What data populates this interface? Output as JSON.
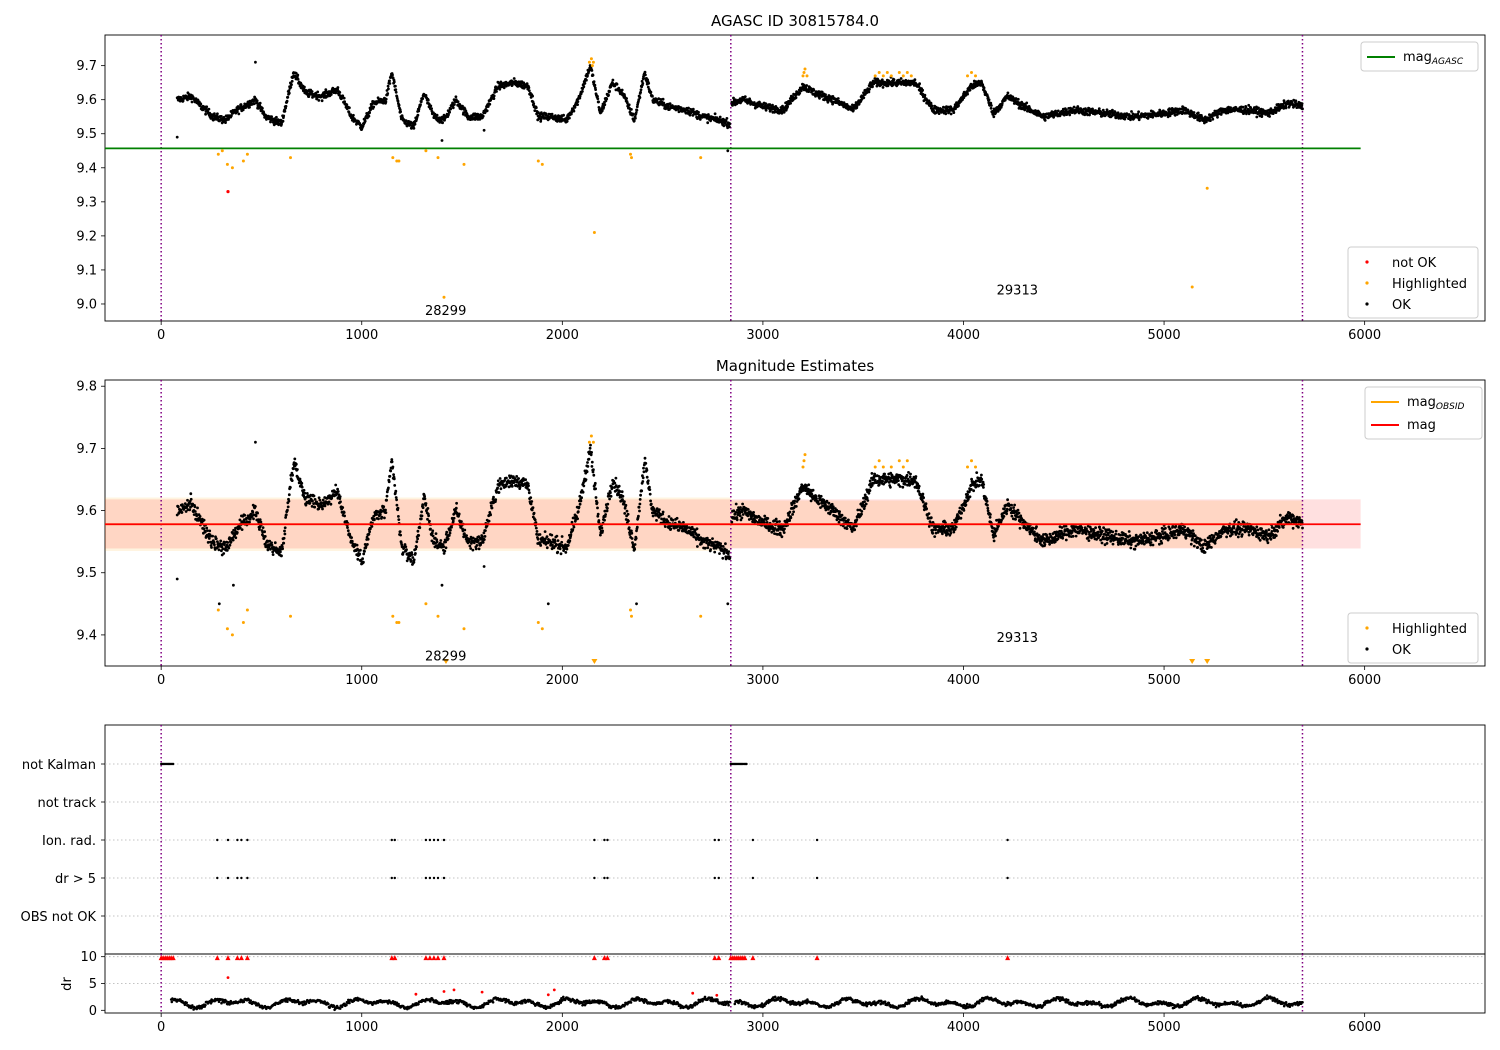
{
  "figure": {
    "title_top": "AGASC ID 30815784.0",
    "title_middle": "Magnitude Estimates"
  },
  "colors": {
    "ok": "#000000",
    "highlighted": "#ffa500",
    "not_ok": "#ff0000",
    "mag_agasc": "#008000",
    "mag_obsid": "#ffa500",
    "mag": "#ff0000",
    "band_obsid": "#ffa500",
    "band_mag": "#ff0000",
    "obs_boundary": "#800080"
  },
  "chart_data": [
    {
      "id": "top",
      "type": "scatter",
      "title": "AGASC ID 30815784.0",
      "xlim": [
        -280,
        6600
      ],
      "ylim": [
        8.95,
        9.79
      ],
      "xticks": [
        0,
        1000,
        2000,
        3000,
        4000,
        5000,
        6000
      ],
      "yticks": [
        9.0,
        9.1,
        9.2,
        9.3,
        9.4,
        9.5,
        9.6,
        9.7
      ],
      "obs_boundaries": [
        0,
        2840,
        5690
      ],
      "obsids": [
        {
          "label": "28299",
          "x": 1420,
          "y": 8.98
        },
        {
          "label": "29313",
          "x": 4270,
          "y": 9.04
        }
      ],
      "hlines": [
        {
          "name": "mag_AGASC",
          "y": 9.457,
          "x": [
            -280,
            5980
          ],
          "color": "#008000"
        }
      ],
      "legend_upper": [
        {
          "label": "mag",
          "sub": "AGASC",
          "color": "#008000"
        }
      ],
      "legend_lower": [
        {
          "label": "not OK",
          "color": "#ff0000"
        },
        {
          "label": "Highlighted",
          "color": "#ffa500"
        },
        {
          "label": "OK",
          "color": "#000000"
        }
      ],
      "highlighted_points": [
        [
          285,
          9.44
        ],
        [
          305,
          9.45
        ],
        [
          330,
          9.41
        ],
        [
          355,
          9.4
        ],
        [
          410,
          9.42
        ],
        [
          430,
          9.44
        ],
        [
          645,
          9.43
        ],
        [
          1155,
          9.43
        ],
        [
          1175,
          9.42
        ],
        [
          1185,
          9.42
        ],
        [
          1320,
          9.45
        ],
        [
          1380,
          9.43
        ],
        [
          1510,
          9.41
        ],
        [
          1880,
          9.42
        ],
        [
          1900,
          9.41
        ],
        [
          2160,
          9.21
        ],
        [
          2340,
          9.44
        ],
        [
          2345,
          9.43
        ],
        [
          2690,
          9.43
        ],
        [
          5140,
          9.05
        ],
        [
          5215,
          9.34
        ],
        [
          2135,
          9.71
        ],
        [
          2145,
          9.72
        ],
        [
          2155,
          9.71
        ],
        [
          2150,
          9.7
        ],
        [
          3200,
          9.67
        ],
        [
          3205,
          9.68
        ],
        [
          3210,
          9.69
        ],
        [
          3220,
          9.67
        ],
        [
          3560,
          9.67
        ],
        [
          3580,
          9.68
        ],
        [
          3600,
          9.67
        ],
        [
          3620,
          9.68
        ],
        [
          3640,
          9.67
        ],
        [
          3680,
          9.68
        ],
        [
          3700,
          9.67
        ],
        [
          3720,
          9.68
        ],
        [
          3740,
          9.67
        ],
        [
          4020,
          9.67
        ],
        [
          4040,
          9.68
        ],
        [
          4060,
          9.67
        ],
        [
          1410,
          9.02
        ]
      ],
      "not_ok_points": [
        [
          333,
          9.33
        ]
      ],
      "segments": [
        {
          "x": [
            80,
            2835
          ],
          "n": 1500,
          "y": [
            [
              80,
              9.6
            ],
            [
              150,
              9.61
            ],
            [
              200,
              9.58
            ],
            [
              260,
              9.55
            ],
            [
              320,
              9.54
            ],
            [
              380,
              9.57
            ],
            [
              470,
              9.6
            ],
            [
              520,
              9.55
            ],
            [
              600,
              9.53
            ],
            [
              660,
              9.68
            ],
            [
              720,
              9.62
            ],
            [
              800,
              9.61
            ],
            [
              880,
              9.63
            ],
            [
              950,
              9.55
            ],
            [
              1000,
              9.52
            ],
            [
              1060,
              9.59
            ],
            [
              1120,
              9.6
            ],
            [
              1150,
              9.68
            ],
            [
              1200,
              9.54
            ],
            [
              1260,
              9.52
            ],
            [
              1310,
              9.62
            ],
            [
              1360,
              9.55
            ],
            [
              1410,
              9.54
            ],
            [
              1470,
              9.6
            ],
            [
              1530,
              9.55
            ],
            [
              1600,
              9.55
            ],
            [
              1680,
              9.64
            ],
            [
              1760,
              9.65
            ],
            [
              1830,
              9.64
            ],
            [
              1880,
              9.55
            ],
            [
              1950,
              9.55
            ],
            [
              2020,
              9.54
            ],
            [
              2080,
              9.6
            ],
            [
              2140,
              9.7
            ],
            [
              2190,
              9.56
            ],
            [
              2250,
              9.65
            ],
            [
              2300,
              9.62
            ],
            [
              2360,
              9.54
            ],
            [
              2410,
              9.68
            ],
            [
              2450,
              9.6
            ],
            [
              2530,
              9.58
            ],
            [
              2620,
              9.57
            ],
            [
              2700,
              9.55
            ],
            [
              2780,
              9.54
            ],
            [
              2835,
              9.53
            ]
          ]
        },
        {
          "x": [
            2845,
            5690
          ],
          "n": 1700,
          "y": [
            [
              2845,
              9.59
            ],
            [
              2900,
              9.6
            ],
            [
              3000,
              9.58
            ],
            [
              3100,
              9.57
            ],
            [
              3200,
              9.64
            ],
            [
              3260,
              9.62
            ],
            [
              3350,
              9.6
            ],
            [
              3450,
              9.57
            ],
            [
              3550,
              9.65
            ],
            [
              3650,
              9.65
            ],
            [
              3760,
              9.65
            ],
            [
              3850,
              9.57
            ],
            [
              3950,
              9.57
            ],
            [
              4040,
              9.64
            ],
            [
              4090,
              9.65
            ],
            [
              4150,
              9.56
            ],
            [
              4220,
              9.61
            ],
            [
              4300,
              9.58
            ],
            [
              4400,
              9.55
            ],
            [
              4550,
              9.57
            ],
            [
              4700,
              9.56
            ],
            [
              4850,
              9.55
            ],
            [
              5000,
              9.56
            ],
            [
              5100,
              9.57
            ],
            [
              5200,
              9.54
            ],
            [
              5300,
              9.57
            ],
            [
              5420,
              9.57
            ],
            [
              5520,
              9.56
            ],
            [
              5620,
              9.59
            ],
            [
              5690,
              9.58
            ]
          ]
        }
      ],
      "outliers_ok": [
        [
          80,
          9.49
        ],
        [
          470,
          9.71
        ],
        [
          1400,
          9.48
        ],
        [
          2825,
          9.45
        ],
        [
          1610,
          9.51
        ]
      ]
    },
    {
      "id": "middle",
      "type": "scatter",
      "title": "Magnitude Estimates",
      "xlim": [
        -280,
        6600
      ],
      "ylim": [
        9.35,
        9.81
      ],
      "xticks": [
        0,
        1000,
        2000,
        3000,
        4000,
        5000,
        6000
      ],
      "yticks": [
        9.4,
        9.5,
        9.6,
        9.7,
        9.8
      ],
      "obs_boundaries": [
        0,
        2840,
        5690
      ],
      "obsids": [
        {
          "label": "28299",
          "x": 1420,
          "y": 9.365
        },
        {
          "label": "29313",
          "x": 4270,
          "y": 9.395
        }
      ],
      "bands": [
        {
          "x": [
            -280,
            2840
          ],
          "y": [
            9.535,
            9.621
          ],
          "color": "#ffa500"
        },
        {
          "x": [
            2840,
            5690
          ],
          "y": [
            9.54,
            9.616
          ],
          "color": "#ffa500"
        },
        {
          "x": [
            -280,
            5980
          ],
          "y": [
            9.539,
            9.618
          ],
          "color": "#ff0000"
        }
      ],
      "hlines": [
        {
          "name": "mag_OBSID_1",
          "y": 9.578,
          "x": [
            -280,
            2840
          ],
          "color": "#ffa500"
        },
        {
          "name": "mag_OBSID_2",
          "y": 9.578,
          "x": [
            2840,
            5690
          ],
          "color": "#ffa500"
        },
        {
          "name": "mag",
          "y": 9.578,
          "x": [
            -280,
            5980
          ],
          "color": "#ff0000"
        }
      ],
      "legend_upper": [
        {
          "label": "mag",
          "sub": "OBSID",
          "color": "#ffa500"
        },
        {
          "label": "mag",
          "sub": "",
          "color": "#ff0000"
        }
      ],
      "legend_lower": [
        {
          "label": "Highlighted",
          "color": "#ffa500"
        },
        {
          "label": "OK",
          "color": "#000000"
        }
      ],
      "highlighted_points": [
        [
          285,
          9.44
        ],
        [
          330,
          9.41
        ],
        [
          355,
          9.4
        ],
        [
          410,
          9.42
        ],
        [
          430,
          9.44
        ],
        [
          645,
          9.43
        ],
        [
          1155,
          9.43
        ],
        [
          1175,
          9.42
        ],
        [
          1185,
          9.42
        ],
        [
          1320,
          9.45
        ],
        [
          1380,
          9.43
        ],
        [
          1510,
          9.41
        ],
        [
          1880,
          9.42
        ],
        [
          1900,
          9.41
        ],
        [
          2340,
          9.44
        ],
        [
          2345,
          9.43
        ],
        [
          2690,
          9.43
        ],
        [
          2135,
          9.71
        ],
        [
          2145,
          9.72
        ],
        [
          2155,
          9.71
        ],
        [
          3200,
          9.67
        ],
        [
          3205,
          9.68
        ],
        [
          3210,
          9.69
        ],
        [
          3560,
          9.67
        ],
        [
          3580,
          9.68
        ],
        [
          3600,
          9.67
        ],
        [
          3640,
          9.67
        ],
        [
          3680,
          9.68
        ],
        [
          3700,
          9.67
        ],
        [
          3720,
          9.68
        ],
        [
          4020,
          9.67
        ],
        [
          4040,
          9.68
        ],
        [
          4060,
          9.67
        ]
      ],
      "offscale_markers": [
        1420,
        2160,
        5140,
        5215
      ],
      "outliers_ok": [
        [
          80,
          9.49
        ],
        [
          470,
          9.71
        ],
        [
          1400,
          9.48
        ],
        [
          2825,
          9.45
        ],
        [
          1610,
          9.51
        ],
        [
          290,
          9.45
        ],
        [
          360,
          9.48
        ],
        [
          1930,
          9.45
        ],
        [
          2370,
          9.45
        ]
      ]
    },
    {
      "id": "flags",
      "type": "scatter",
      "xlim": [
        -280,
        6600
      ],
      "categories": [
        "not Kalman",
        "not track",
        "Ion. rad.",
        "dr > 5",
        "OBS not OK"
      ],
      "obs_boundaries": [
        0,
        2840,
        5690
      ],
      "not_kalman_ranges": [
        [
          0,
          60
        ],
        [
          2840,
          2920
        ]
      ],
      "ion_rad_x": [
        280,
        333,
        380,
        400,
        430,
        1150,
        1165,
        1320,
        1340,
        1360,
        1380,
        1410,
        2160,
        2210,
        2225,
        2760,
        2780,
        2950,
        3270,
        4220
      ],
      "dr5_x": [
        280,
        333,
        380,
        400,
        430,
        1150,
        1165,
        1320,
        1340,
        1360,
        1380,
        1410,
        2160,
        2210,
        2225,
        2760,
        2780,
        2950,
        3270,
        4220
      ]
    },
    {
      "id": "dr",
      "type": "scatter",
      "xlim": [
        -280,
        6600
      ],
      "ylim": [
        -0.5,
        10.5
      ],
      "ylabel": "dr",
      "yticks": [
        0,
        5,
        10
      ],
      "xticks": [
        0,
        1000,
        2000,
        3000,
        4000,
        5000,
        6000
      ],
      "obs_boundaries": [
        0,
        2840,
        5690
      ],
      "clipped_x": [
        0,
        10,
        20,
        30,
        40,
        50,
        60,
        280,
        333,
        380,
        400,
        430,
        1150,
        1165,
        1320,
        1340,
        1360,
        1380,
        1410,
        2160,
        2210,
        2225,
        2760,
        2780,
        2840,
        2850,
        2860,
        2870,
        2880,
        2890,
        2900,
        2910,
        2950,
        3270,
        4220
      ],
      "red_points": [
        [
          333,
          6.1
        ],
        [
          1270,
          3.0
        ],
        [
          1410,
          3.5
        ],
        [
          1460,
          3.8
        ],
        [
          1600,
          3.4
        ],
        [
          1930,
          2.9
        ],
        [
          1960,
          3.8
        ],
        [
          2650,
          3.2
        ],
        [
          2770,
          2.8
        ]
      ],
      "segments": [
        {
          "x": [
            50,
            2835
          ],
          "n": 900
        },
        {
          "x": [
            2860,
            5690
          ],
          "n": 900
        }
      ]
    }
  ]
}
